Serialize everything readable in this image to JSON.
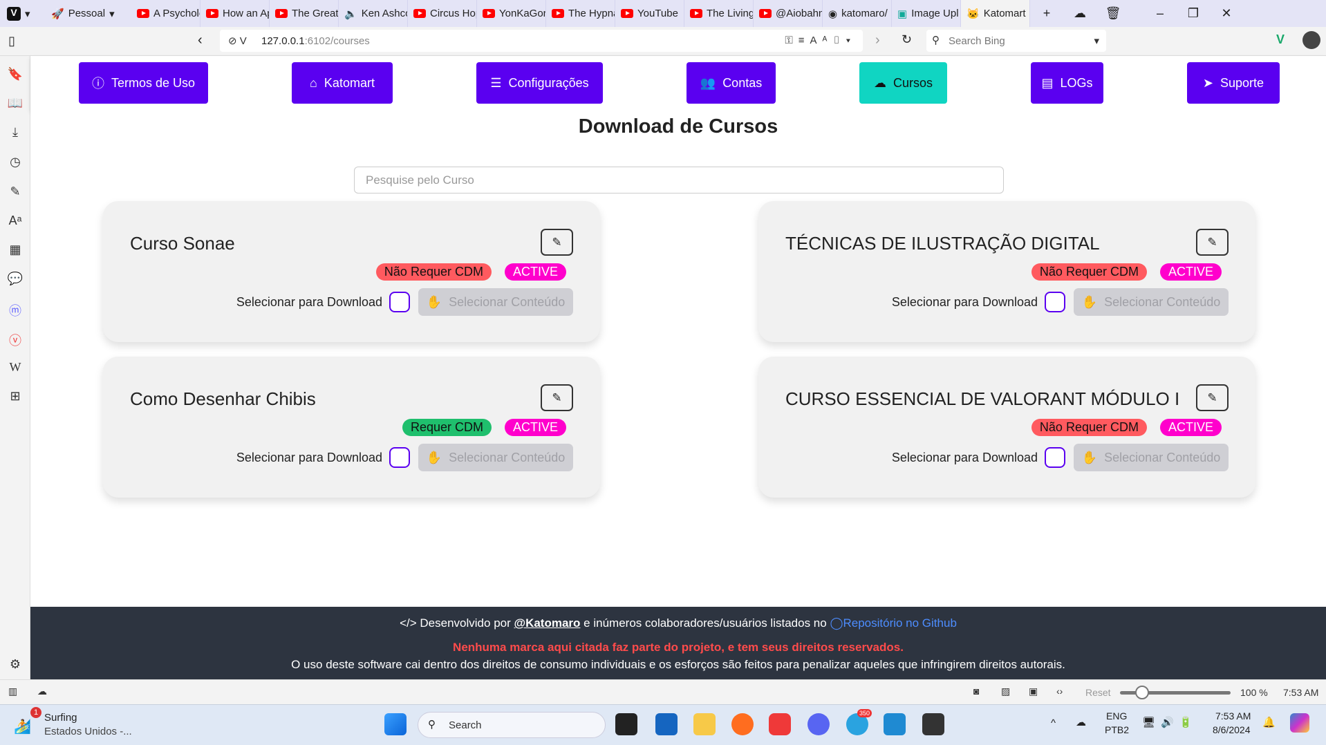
{
  "browser": {
    "profile": "Pessoal",
    "tabs": [
      {
        "title": "A Psycholo",
        "icon": "youtube-icon"
      },
      {
        "title": "How an Ap",
        "icon": "youtube-icon"
      },
      {
        "title": "The Greate",
        "icon": "youtube-icon"
      },
      {
        "title": "Ken Ashco",
        "icon": "speaker-icon"
      },
      {
        "title": "Circus Hop",
        "icon": "youtube-icon"
      },
      {
        "title": "YonKaGor",
        "icon": "youtube-icon"
      },
      {
        "title": "The Hypna",
        "icon": "youtube-icon"
      },
      {
        "title": "YouTube",
        "icon": "youtube-icon"
      },
      {
        "title": "The Living",
        "icon": "youtube-icon"
      },
      {
        "title": "@Aiobahn",
        "icon": "youtube-icon"
      },
      {
        "title": "katomaro/",
        "icon": "github-icon"
      },
      {
        "title": "Image Upl",
        "icon": "image-icon"
      },
      {
        "title": "Katomart",
        "icon": "katomart-icon",
        "active": true
      }
    ],
    "url_host": "127.0.0.1",
    "url_rest": ":6102/courses",
    "search_placeholder": "Search Bing"
  },
  "nav": {
    "items": [
      {
        "label": "Termos de Uso",
        "icon": "info-icon"
      },
      {
        "label": "Katomart",
        "icon": "home-icon"
      },
      {
        "label": "Configurações",
        "icon": "sliders-icon"
      },
      {
        "label": "Contas",
        "icon": "users-icon"
      },
      {
        "label": "Cursos",
        "icon": "cloud-download-icon",
        "active": true
      },
      {
        "label": "LOGs",
        "icon": "file-icon"
      },
      {
        "label": "Suporte",
        "icon": "paper-plane-icon"
      }
    ],
    "colors": {
      "primary": "#5a00f0",
      "active": "#10d5c2"
    }
  },
  "page": {
    "title": "Download de Cursos",
    "search_placeholder": "Pesquise pelo Curso",
    "download_label": "Selecionar para Download",
    "select_content_label": "Selecionar Conteúdo"
  },
  "courses": [
    {
      "name": "Curso Sonae",
      "cdm": "Não Requer CDM",
      "cdm_required": false,
      "status": "ACTIVE"
    },
    {
      "name": "TÉCNICAS DE ILUSTRAÇÃO DIGITAL",
      "cdm": "Não Requer CDM",
      "cdm_required": false,
      "status": "ACTIVE"
    },
    {
      "name": "Como Desenhar Chibis",
      "cdm": "Requer CDM",
      "cdm_required": true,
      "status": "ACTIVE"
    },
    {
      "name": "CURSO ESSENCIAL DE VALORANT MÓDULO I",
      "cdm": "Não Requer CDM",
      "cdm_required": false,
      "status": "ACTIVE"
    }
  ],
  "footer": {
    "dev_prefix": "Desenvolvido por",
    "author": "@Katomaro",
    "dev_middle": "e inúmeros colaboradores/usuários listados no",
    "repo": "Repositório no Github",
    "warning": "Nenhuma marca aqui citada faz parte do projeto, e tem seus direitos reservados.",
    "notice": "O uso deste software cai dentro dos direitos de consumo individuais e os esforços são feitos para penalizar aqueles que infringirem direitos autorais."
  },
  "statusbar": {
    "reset": "Reset",
    "zoom": "100 %",
    "time": "7:53 AM"
  },
  "taskbar": {
    "weather_title": "Surfing",
    "weather_sub": "Estados Unidos -...",
    "weather_badge": "1",
    "search": "Search",
    "lang1": "ENG",
    "lang2": "PTB2",
    "time": "7:53 AM",
    "date": "8/6/2024",
    "telegram_badge": "350"
  }
}
